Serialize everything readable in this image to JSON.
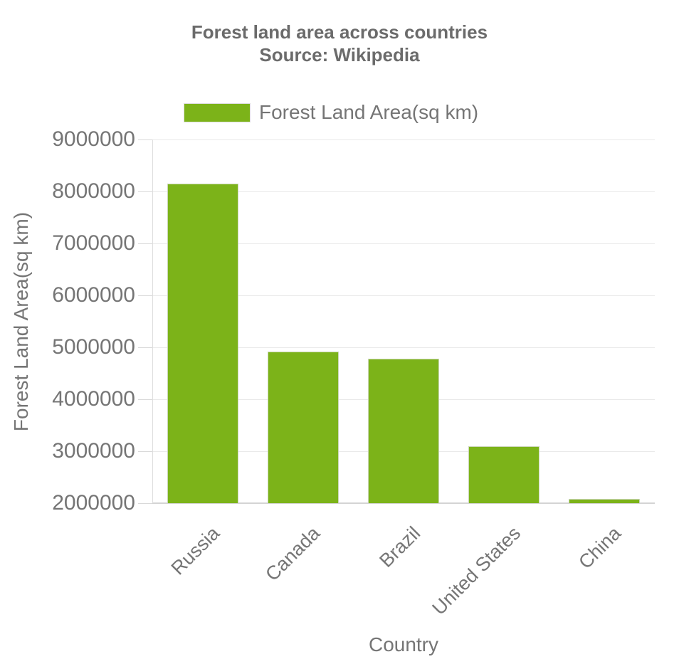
{
  "title": "Forest land area across countries",
  "subtitle": "Source: Wikipedia",
  "legend": {
    "label": "Forest Land Area(sq km)"
  },
  "axes": {
    "x_title": "Country",
    "y_title": "Forest Land Area(sq km)"
  },
  "chart_data": {
    "type": "bar",
    "title": "Forest land area across countries",
    "subtitle": "Source: Wikipedia",
    "categories": [
      "Russia",
      "Canada",
      "Brazil",
      "United States",
      "China"
    ],
    "series": [
      {
        "name": "Forest Land Area(sq km)",
        "color": "#7CB319",
        "values": [
          8149300,
          4916438,
          4776980,
          3100950,
          2083210
        ]
      }
    ],
    "xlabel": "Country",
    "ylabel": "Forest Land Area(sq km)",
    "ylim": [
      2000000,
      9000000
    ],
    "yticks": [
      2000000,
      3000000,
      4000000,
      5000000,
      6000000,
      7000000,
      8000000,
      9000000
    ],
    "grid": true,
    "legend_position": "top"
  },
  "colors": {
    "bar": "#7CB319",
    "text": "#757575",
    "title_text": "#6b6b6b",
    "gridline": "#e9e9e9",
    "baseline": "#d4d4d4",
    "axis_line": "#dedede",
    "tick": "#d9d9d9"
  }
}
